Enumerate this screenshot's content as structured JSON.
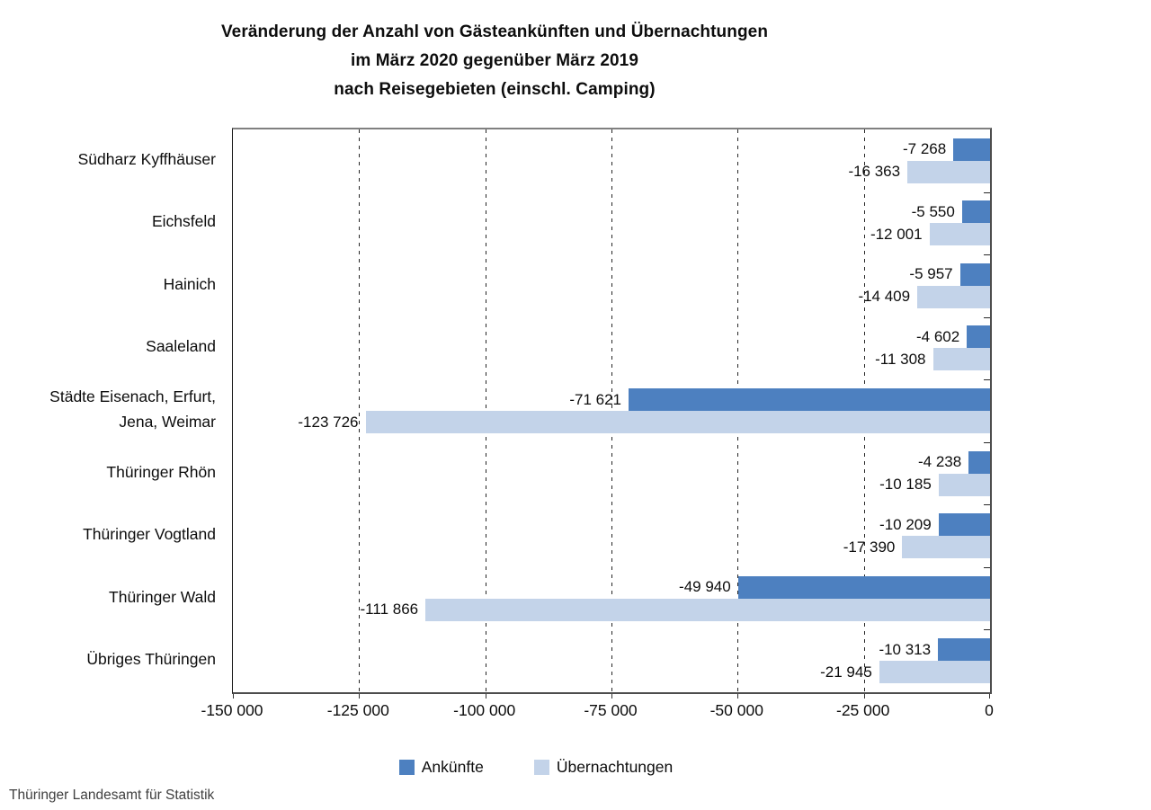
{
  "header": {
    "title_lines": [
      "Veränderung der Anzahl von Gästeankünften und Übernachtungen",
      "im März 2020 gegenüber März 2019",
      "nach Reisegebieten (einschl. Camping)"
    ]
  },
  "footer": {
    "source": "Thüringer Landesamt für Statistik"
  },
  "chart_data": {
    "type": "bar",
    "orientation": "horizontal",
    "title": "Veränderung der Anzahl von Gästeankünften und Übernachtungen im März 2020 gegenüber März 2019 nach Reisegebieten (einschl. Camping)",
    "categories": [
      "Südharz Kyffhäuser",
      "Eichsfeld",
      "Hainich",
      "Saaleland",
      "Städte Eisenach, Erfurt,\nJena, Weimar",
      "Thüringer Rhön",
      "Thüringer Vogtland",
      "Thüringer Wald",
      "Übriges Thüringen"
    ],
    "series": [
      {
        "name": "Ankünfte",
        "color": "#4d80c0",
        "values": [
          -7268,
          -5550,
          -5957,
          -4602,
          -71621,
          -4238,
          -10209,
          -49940,
          -10313
        ],
        "labels": [
          "-7 268",
          "-5 550",
          "-5 957",
          "-4 602",
          "-71 621",
          "-4 238",
          "-10 209",
          "-49 940",
          "-10 313"
        ]
      },
      {
        "name": "Übernachtungen",
        "color": "#c3d3e9",
        "values": [
          -16363,
          -12001,
          -14409,
          -11308,
          -123726,
          -10185,
          -17390,
          -111866,
          -21945
        ],
        "labels": [
          "-16 363",
          "-12 001",
          "-14 409",
          "-11 308",
          "-123 726",
          "-10 185",
          "-17 390",
          "-111 866",
          "-21 945"
        ]
      }
    ],
    "xlim": [
      -150000,
      0
    ],
    "x_tick_values": [
      -150000,
      -125000,
      -100000,
      -75000,
      -50000,
      -25000,
      0
    ],
    "x_tick_labels": [
      "-150 000",
      "-125 000",
      "-100 000",
      "-75 000",
      "-50 000",
      "-25 000",
      "0"
    ],
    "xlabel": "",
    "ylabel": "",
    "grid": "dashed-vertical",
    "legend_position": "bottom",
    "source": "Thüringer Landesamt für Statistik"
  }
}
